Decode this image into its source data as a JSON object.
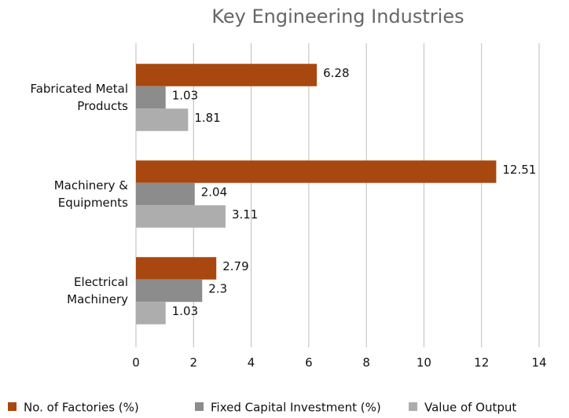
{
  "chart_data": {
    "type": "hbar",
    "title": "Key Engineering Industries",
    "categories": [
      "Fabricated Metal Products",
      "Machinery & Equipments",
      "Electrical Machinery"
    ],
    "series": [
      {
        "name": "No. of Factories (%)",
        "color": "#a8470f",
        "values": [
          6.28,
          12.51,
          2.79
        ]
      },
      {
        "name": "Fixed Capital Investment (%)",
        "color": "#8c8c8c",
        "values": [
          1.03,
          2.04,
          2.3
        ]
      },
      {
        "name": "Value of Output",
        "color": "#adadad",
        "values": [
          1.81,
          3.11,
          1.03
        ]
      }
    ],
    "xlim": [
      0,
      14
    ],
    "xticks": [
      0,
      2,
      4,
      6,
      8,
      10,
      12,
      14
    ],
    "grid": true
  }
}
